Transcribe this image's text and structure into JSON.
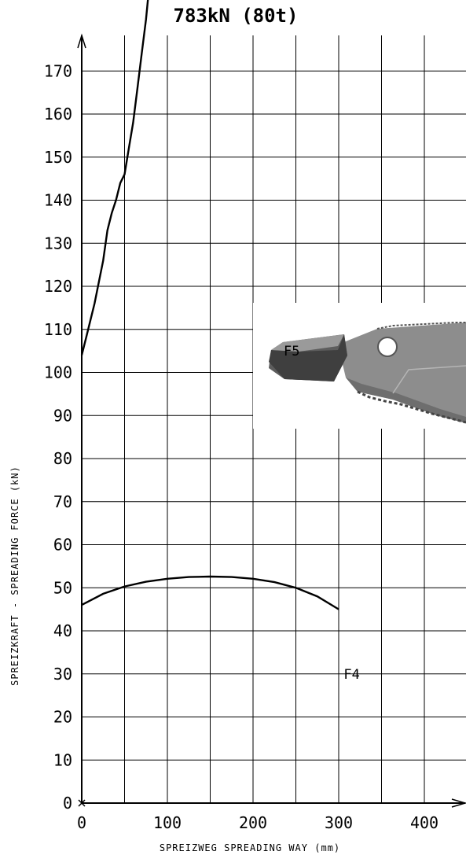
{
  "chart_data": {
    "type": "line",
    "title": "783kN (80t)",
    "xlabel": "SPREIZWEG SPREADING WAY (mm)",
    "ylabel": "SPREIZKRAFT - SPREADING FORCE (kN)",
    "xlim": [
      0,
      450
    ],
    "ylim": [
      0,
      180
    ],
    "x_ticks": [
      0,
      100,
      200,
      300,
      400
    ],
    "y_ticks": [
      0,
      10,
      20,
      30,
      40,
      50,
      60,
      70,
      80,
      90,
      100,
      110,
      120,
      130,
      140,
      150,
      160,
      170
    ],
    "grid": true,
    "series": [
      {
        "name": "F5",
        "x": [
          0,
          5,
          10,
          15,
          20,
          25,
          30,
          35,
          40,
          45,
          50,
          55,
          60,
          65,
          70,
          75,
          78
        ],
        "y": [
          104,
          108,
          112,
          116,
          121,
          126,
          133,
          137,
          140,
          144,
          146,
          152,
          158,
          166,
          174,
          182,
          188
        ]
      },
      {
        "name": "F4",
        "x": [
          0,
          25,
          50,
          75,
          100,
          125,
          150,
          175,
          200,
          225,
          250,
          275,
          300
        ],
        "y": [
          46,
          48.6,
          50.3,
          51.4,
          52.1,
          52.5,
          52.6,
          52.5,
          52.1,
          51.3,
          50,
          48,
          45
        ]
      }
    ],
    "labels": [
      {
        "text": "F5",
        "x": 245,
        "y": 105
      },
      {
        "text": "F4",
        "x": 315,
        "y": 30
      }
    ]
  }
}
